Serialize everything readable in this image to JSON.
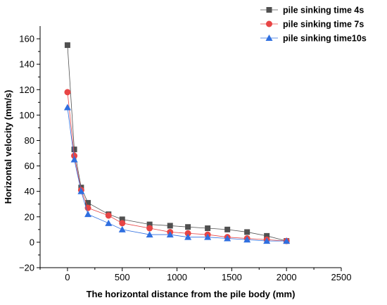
{
  "chart_data": {
    "type": "line",
    "xlabel": "The horizontal distance from the pile body (mm)",
    "ylabel": "Horizontal velocity (mm/s)",
    "xlim": [
      -250,
      2500
    ],
    "ylim": [
      -20,
      170
    ],
    "xticks": [
      0,
      500,
      1000,
      1500,
      2000,
      2500
    ],
    "yticks": [
      -20,
      0,
      20,
      40,
      60,
      80,
      100,
      120,
      140,
      160
    ],
    "legend_position": "top-right",
    "x": [
      0,
      62,
      125,
      187,
      375,
      500,
      750,
      937,
      1100,
      1280,
      1460,
      1640,
      1820,
      2000
    ],
    "series": [
      {
        "name": "pile sinking time 4s",
        "color": "#505050",
        "marker": "square",
        "values": [
          155,
          73,
          43,
          31,
          22,
          18,
          14,
          13,
          12,
          11,
          10,
          8,
          5,
          1
        ]
      },
      {
        "name": "pile sinking time 7s",
        "color": "#e84545",
        "marker": "circle",
        "values": [
          118,
          68,
          41,
          27,
          21,
          15,
          11,
          8,
          7,
          6,
          4,
          3,
          2,
          1
        ]
      },
      {
        "name": "pile sinking time10s",
        "color": "#2f6fe0",
        "marker": "triangle",
        "values": [
          106,
          65,
          40,
          22,
          15,
          10,
          6,
          6,
          4,
          4,
          3,
          2,
          1,
          1
        ]
      }
    ]
  }
}
